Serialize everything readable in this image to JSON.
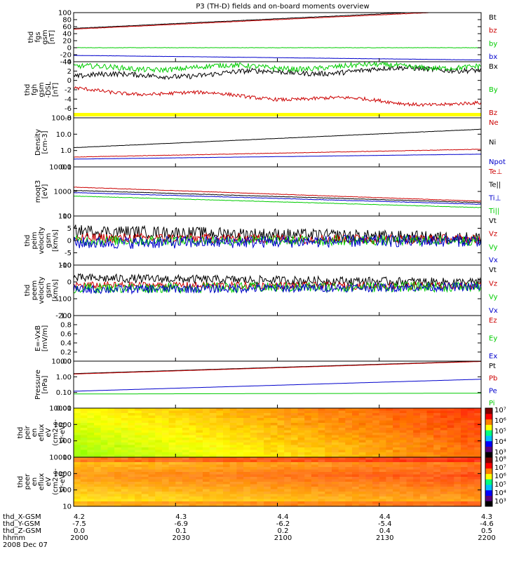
{
  "title": "P3 (TH-D) fields and on-board moments overview",
  "date": "2008 Dec 07",
  "orbit_labels": [
    "thd_X-GSM",
    "thd_Y-GSM",
    "thd_Z-GSM",
    "hhmm"
  ],
  "orbit_values": [
    [
      "4.2",
      "4.3",
      "4.4",
      "4.4",
      "4.3"
    ],
    [
      "-7.5",
      "-6.9",
      "-6.2",
      "-5.4",
      "-4.6"
    ],
    [
      "0.0",
      "0.1",
      "0.2",
      "0.4",
      "0.5"
    ],
    [
      "2000",
      "2030",
      "2100",
      "2130",
      "2200"
    ]
  ],
  "colors": {
    "black": "#000000",
    "red": "#cc0000",
    "green": "#00cc00",
    "blue": "#0000cc",
    "yellow": "#ffff00"
  },
  "chart_data": [
    {
      "type": "line",
      "id": "fgs",
      "ylabel": [
        "thd",
        "fgs",
        "gsm",
        "[nT]"
      ],
      "ylim": [
        -40,
        100
      ],
      "yticks": [
        "100",
        "80",
        "60",
        "40",
        "20",
        "0",
        "-20",
        "-40"
      ],
      "series": [
        {
          "name": "Bt",
          "color": "#000000",
          "start": 55,
          "end": 110,
          "noise": 0.5
        },
        {
          "name": "bz",
          "color": "#cc0000",
          "start": 53,
          "end": 107,
          "noise": 0.5
        },
        {
          "name": "by",
          "color": "#00cc00",
          "start": 0,
          "end": 0,
          "noise": 0.4
        },
        {
          "name": "bx",
          "color": "#0000cc",
          "start": -22,
          "end": -35,
          "noise": 0.3
        }
      ]
    },
    {
      "type": "line",
      "id": "fgh",
      "ylabel": [
        "thd",
        "fgh",
        "gsm",
        "-DSL",
        "[nT]"
      ],
      "ylim": [
        -9,
        4
      ],
      "yticks": [
        "4",
        "2",
        "0",
        "-2",
        "-4",
        "-6",
        "-8"
      ],
      "series": [
        {
          "name": "Bx",
          "color": "#000000",
          "start": 0.5,
          "end": 2.5,
          "noise": 0.6
        },
        {
          "name": "By",
          "color": "#00cc00",
          "start": 2.5,
          "end": 3.0,
          "noise": 0.6
        },
        {
          "name": "Bz",
          "color": "#cc0000",
          "start": -2.5,
          "end": -6.0,
          "noise": 0.4
        }
      ],
      "flag_bar": true
    },
    {
      "type": "line",
      "id": "density",
      "log": true,
      "ylabel": [
        "Density",
        "[cm-3]"
      ],
      "ylim": [
        0.1,
        100
      ],
      "yticks": [
        "100.0",
        "10.0",
        "1.0",
        "0.1"
      ],
      "series": [
        {
          "name": "Ne",
          "color": "#cc0000",
          "start": 0.4,
          "end": 1.2,
          "noise": 0.03
        },
        {
          "name": "Ni",
          "color": "#000000",
          "start": 1.5,
          "end": 20,
          "noise": 0.02
        },
        {
          "name": "Npot",
          "color": "#0000cc",
          "start": 0.3,
          "end": 0.6,
          "noise": 0.01
        }
      ]
    },
    {
      "type": "line",
      "id": "temp",
      "log": true,
      "ylabel": [
        "moqt3",
        "[eV]"
      ],
      "ylim": [
        100,
        10000
      ],
      "yticks": [
        "10000",
        "1000",
        "100"
      ],
      "series": [
        {
          "name": "Te⊥",
          "color": "#cc0000",
          "start": 1500,
          "end": 400,
          "noise": 0.02
        },
        {
          "name": "Te||",
          "color": "#000000",
          "start": 1100,
          "end": 350,
          "noise": 0.02
        },
        {
          "name": "Ti⊥",
          "color": "#0000cc",
          "start": 900,
          "end": 300,
          "noise": 0.02
        },
        {
          "name": "Ti||",
          "color": "#00cc00",
          "start": 650,
          "end": 220,
          "noise": 0.02
        }
      ]
    },
    {
      "type": "line",
      "id": "peim",
      "ylabel": [
        "thd",
        "peim",
        "velocity",
        "gsm",
        "[km/s]"
      ],
      "ylim": [
        -10,
        10
      ],
      "yticks": [
        "10",
        "5",
        "0",
        "-5",
        "-10"
      ],
      "series": [
        {
          "name": "Vt",
          "color": "#000000",
          "start": 4,
          "end": 1,
          "noise": 2.5
        },
        {
          "name": "Vz",
          "color": "#cc0000",
          "start": 1,
          "end": 0.5,
          "noise": 2.0
        },
        {
          "name": "Vy",
          "color": "#00cc00",
          "start": 0,
          "end": 0,
          "noise": 2.0
        },
        {
          "name": "Vx",
          "color": "#0000cc",
          "start": -1,
          "end": 0,
          "noise": 2.5
        }
      ]
    },
    {
      "type": "line",
      "id": "peem",
      "ylabel": [
        "thd",
        "peem",
        "velocity",
        "gsm",
        "[km/s]"
      ],
      "ylim": [
        -200,
        150
      ],
      "yticks": [
        "100",
        "0",
        "-100",
        "-200"
      ],
      "series": [
        {
          "name": "Vt",
          "color": "#000000",
          "start": 60,
          "end": 30,
          "noise": 30
        },
        {
          "name": "Vz",
          "color": "#cc0000",
          "start": 10,
          "end": 5,
          "noise": 25
        },
        {
          "name": "Vy",
          "color": "#00cc00",
          "start": -10,
          "end": 0,
          "noise": 35
        },
        {
          "name": "Vx",
          "color": "#0000cc",
          "start": -20,
          "end": 0,
          "noise": 30
        }
      ]
    },
    {
      "type": "line",
      "id": "efield",
      "ylabel": [
        "E=-VxB",
        "[mV/m]"
      ],
      "ylim": [
        0,
        1
      ],
      "yticks": [
        "1.0",
        "0.8",
        "0.6",
        "0.4",
        "0.2",
        "0.0"
      ],
      "series": [
        {
          "name": "Ez",
          "color": "#cc0000",
          "empty": true
        },
        {
          "name": "Ey",
          "color": "#00cc00",
          "empty": true
        },
        {
          "name": "Ex",
          "color": "#0000cc",
          "empty": true
        }
      ]
    },
    {
      "type": "line",
      "id": "pressure",
      "log": true,
      "ylabel": [
        "Pressure",
        "[nPa]"
      ],
      "ylim": [
        0.01,
        10
      ],
      "yticks": [
        "10.00",
        "1.00",
        "0.10",
        "0.01"
      ],
      "series": [
        {
          "name": "Pt",
          "color": "#000000",
          "start": 1.6,
          "end": 10,
          "noise": 0.0
        },
        {
          "name": "Pb",
          "color": "#cc0000",
          "start": 1.5,
          "end": 9.5,
          "noise": 0.0
        },
        {
          "name": "Pe",
          "color": "#0000cc",
          "start": 0.12,
          "end": 0.7,
          "noise": 0.0
        },
        {
          "name": "Pi",
          "color": "#00cc00",
          "start": 0.08,
          "end": 0.09,
          "noise": 0.0
        }
      ]
    },
    {
      "type": "heatmap",
      "id": "peir",
      "ylabel": [
        "thd",
        "peir",
        "en",
        "eflux",
        "eV",
        "(cm2-s-",
        "sr-eV)"
      ],
      "ylim": [
        10,
        10000
      ],
      "yticks": [
        "10000",
        "1000",
        "100",
        "10"
      ],
      "colorbar_ticks": [
        "10⁷",
        "10⁶",
        "10⁵",
        "10⁴",
        "10³"
      ]
    },
    {
      "type": "heatmap",
      "id": "peer",
      "ylabel": [
        "thd",
        "peer",
        "en",
        "eflux",
        "eV",
        "(cm2-s-",
        "sr-eV)"
      ],
      "ylim": [
        10,
        10000
      ],
      "yticks": [
        "10000",
        "1000",
        "100",
        "10"
      ],
      "colorbar_ticks": [
        "10⁸",
        "10⁷",
        "10⁶",
        "10⁵",
        "10⁴",
        "10³"
      ]
    }
  ]
}
